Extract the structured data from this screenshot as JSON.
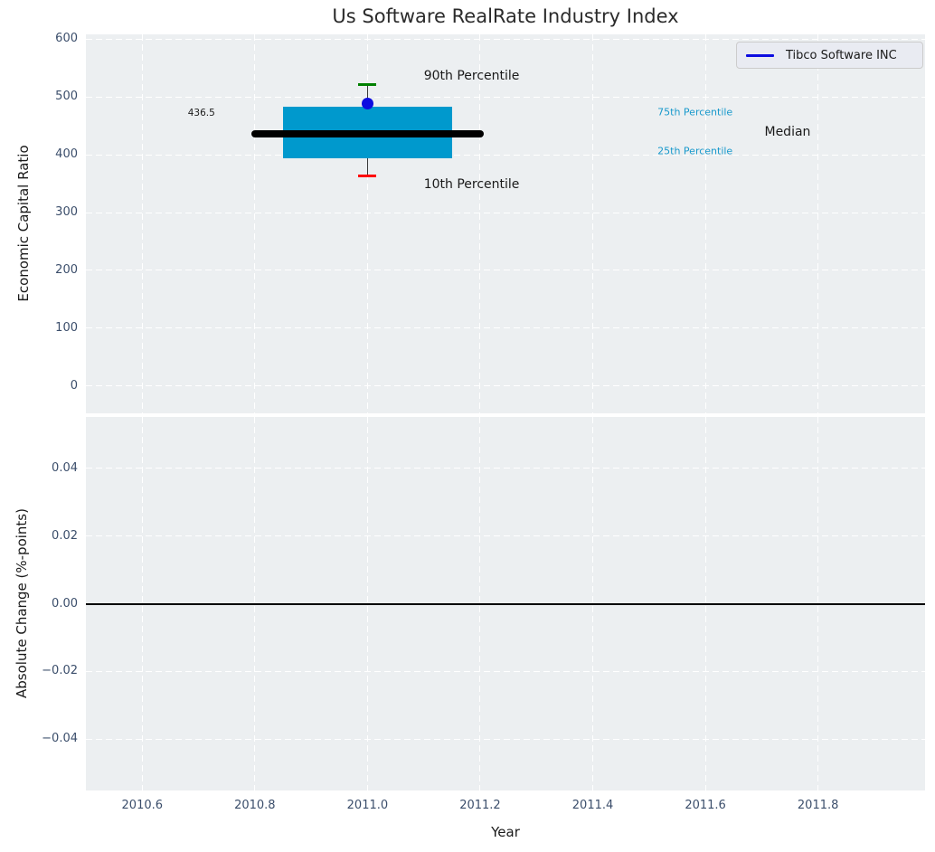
{
  "title": "Us Software RealRate Industry Index",
  "legend": {
    "label": "Tibco Software INC",
    "line_color": "#0d0de0",
    "position": "upper right"
  },
  "colors": {
    "figure_bg": "#ffffff",
    "plot_bg": "#eceff1",
    "grid": "#ffffff",
    "tick_text": "#3b4e6b",
    "box_fill": "#0099cd",
    "median_line": "#000000",
    "company_dot": "#0d0de0",
    "cap_90th": "#008000",
    "cap_10th": "#ff0000",
    "whisker": "#3a3a3a",
    "percentile_text": "#1899cc",
    "annotation_text": "#1a1a1a",
    "zero_line": "#000000"
  },
  "chart_data": [
    {
      "type": "boxplot",
      "panel": "top",
      "ylabel": "Economic Capital Ratio",
      "xlim": [
        2010.5,
        2011.99
      ],
      "ylim": [
        -47.3,
        608.5
      ],
      "yticks": [
        600,
        500,
        400,
        300,
        200,
        100,
        0
      ],
      "ytick_labels": [
        "600",
        "500",
        "400",
        "300",
        "200",
        "100",
        "0"
      ],
      "xticks": [
        2010.6,
        2010.8,
        2011.0,
        2011.2,
        2011.4,
        2011.6,
        2011.8
      ],
      "grid": true,
      "box": {
        "x": 2011.0,
        "p90": 522,
        "p75": 483,
        "median": 436.5,
        "p25": 394,
        "p10": 363,
        "box_x": [
          2010.85,
          2011.15
        ],
        "median_x": [
          2010.8,
          2011.2
        ],
        "cap_x": [
          2010.984,
          2011.016
        ],
        "company": {
          "name": "Tibco Software INC",
          "value": 488
        }
      },
      "annotations": [
        {
          "text": "90th Percentile",
          "x": 2011.1,
          "y": 536,
          "color": "#1a1a1a",
          "size": 14
        },
        {
          "text": "10th Percentile",
          "x": 2011.1,
          "y": 349,
          "color": "#1a1a1a",
          "size": 14
        },
        {
          "text": "75th Percentile",
          "x": 2011.515,
          "y": 474,
          "color": "#1899cc",
          "size": 11
        },
        {
          "text": "25th Percentile",
          "x": 2011.515,
          "y": 407,
          "color": "#1899cc",
          "size": 11
        },
        {
          "text": "Median",
          "x": 2011.705,
          "y": 439,
          "color": "#1a1a1a",
          "size": 14
        },
        {
          "text": "436.5",
          "x": 2010.681,
          "y": 472,
          "color": "#1a1a1a",
          "size": 10.5
        }
      ]
    },
    {
      "type": "line",
      "panel": "bottom",
      "ylabel": "Absolute Change (%-points)",
      "xlabel": "Year",
      "xlim": [
        2010.5,
        2011.99
      ],
      "ylim": [
        -0.0552,
        0.0552
      ],
      "yticks": [
        0.04,
        0.02,
        0.0,
        -0.02,
        -0.04
      ],
      "ytick_labels": [
        "0.04",
        "0.02",
        "0.00",
        "−0.02",
        "−0.04"
      ],
      "xticks": [
        2010.6,
        2010.8,
        2011.0,
        2011.2,
        2011.4,
        2011.6,
        2011.8
      ],
      "xtick_labels": [
        "2010.6",
        "2010.8",
        "2011.0",
        "2011.2",
        "2011.4",
        "2011.6",
        "2011.8"
      ],
      "zero_line": 0.0,
      "grid": true,
      "series": []
    }
  ]
}
